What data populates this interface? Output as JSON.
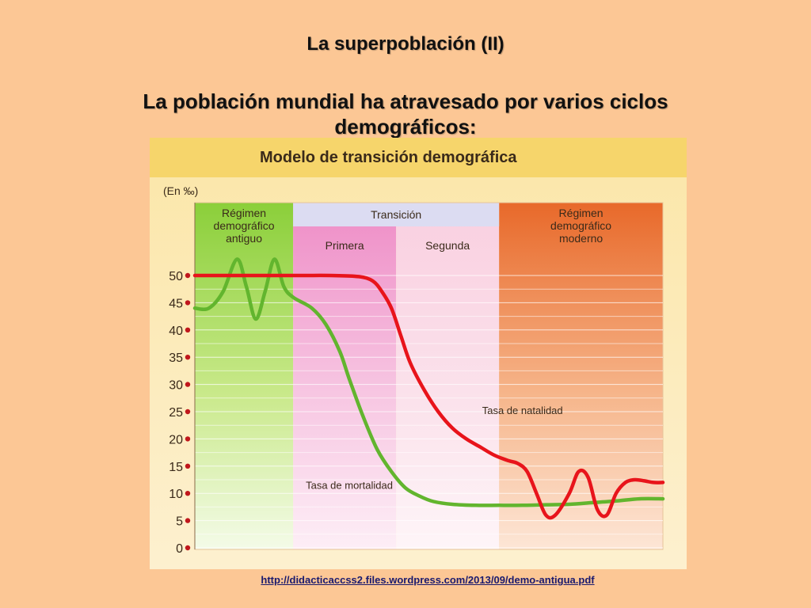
{
  "slide": {
    "title": "La superpoblación (II)",
    "subtitle_line1": "La población mundial ha atravesado por varios ciclos",
    "subtitle_line2": "demográficos:",
    "source_link": "http://didacticaccss2.files.wordpress.com/2013/09/demo-antigua.pdf"
  },
  "colors": {
    "natalidad": "#e8141b",
    "mortalidad": "#62b52e",
    "dots": "#c0171c",
    "header_band": "#f6d56b"
  },
  "chart_data": {
    "type": "line",
    "title": "Modelo de transición demográfica",
    "ylabel": "(En ‰)",
    "ylim": [
      0,
      50
    ],
    "yticks": [
      0,
      5,
      10,
      15,
      20,
      25,
      30,
      35,
      40,
      45,
      50
    ],
    "x_axis": "time progression across demographic phases (unlabeled)",
    "phases": [
      {
        "label": "Régimen\ndemográfico\nantiguo",
        "start": 0,
        "end": 21
      },
      {
        "label": "Primera",
        "group": "Transición",
        "start": 21,
        "end": 43
      },
      {
        "label": "Segunda",
        "group": "Transición",
        "start": 43,
        "end": 65
      },
      {
        "label": "Régimen\ndemográfico\nmoderno",
        "start": 65,
        "end": 100
      }
    ],
    "group_label": "Transición",
    "series": [
      {
        "name": "Tasa de natalidad",
        "x": [
          0,
          21,
          29,
          35,
          38,
          40,
          42,
          44,
          46,
          49,
          52,
          55,
          58,
          61,
          64,
          67,
          69,
          71,
          73,
          75,
          77,
          80,
          82,
          84,
          86,
          88,
          90,
          92,
          94,
          96,
          98,
          100
        ],
        "y": [
          50,
          50,
          50,
          49.8,
          49,
          47,
          44,
          39,
          34,
          29,
          25,
          22,
          20,
          18.5,
          17,
          16,
          15.5,
          14,
          10,
          6,
          6,
          10,
          14,
          13,
          7,
          6,
          10,
          12,
          12.5,
          12.3,
          12,
          12
        ]
      },
      {
        "name": "Tasa de mortalidad",
        "x": [
          0,
          3,
          6,
          9,
          11,
          13,
          15,
          17,
          19,
          21,
          25,
          28,
          31,
          33,
          36,
          39,
          42,
          45,
          48,
          51,
          55,
          60,
          65,
          70,
          75,
          80,
          85,
          90,
          95,
          100
        ],
        "y": [
          44,
          44,
          47,
          53,
          48,
          42,
          47,
          53,
          48,
          46,
          44,
          41,
          36,
          31,
          24,
          18,
          14,
          11,
          9.5,
          8.5,
          8,
          7.8,
          7.8,
          7.8,
          7.9,
          8,
          8.3,
          8.6,
          9,
          9
        ]
      }
    ],
    "annotations": [
      {
        "text": "Tasa de natalidad",
        "series": "natalidad"
      },
      {
        "text": "Tasa de mortalidad",
        "series": "mortalidad"
      }
    ],
    "grid": true
  }
}
